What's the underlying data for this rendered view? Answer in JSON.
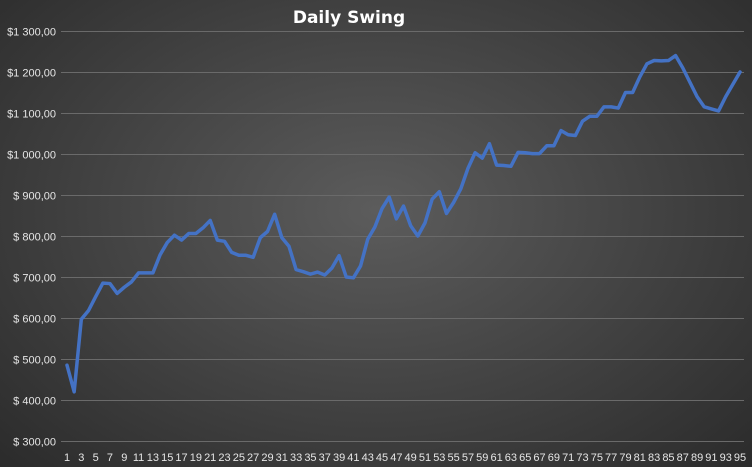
{
  "chart_data": {
    "type": "line",
    "title": "Daily Swing",
    "xlabel": "",
    "ylabel": "",
    "ylim": [
      300,
      1300
    ],
    "ytick_values": [
      300,
      400,
      500,
      600,
      700,
      800,
      900,
      1000,
      1100,
      1200,
      1300
    ],
    "ytick_labels": [
      "$ 300,00",
      "$ 400,00",
      "$ 500,00",
      "$ 600,00",
      "$ 700,00",
      "$ 800,00",
      "$ 900,00",
      "$1 000,00",
      "$1 100,00",
      "$1 200,00",
      "$1 300,00"
    ],
    "xtick_labels": [
      "1",
      "3",
      "5",
      "7",
      "9",
      "11",
      "13",
      "15",
      "17",
      "19",
      "21",
      "23",
      "25",
      "27",
      "29",
      "31",
      "33",
      "35",
      "37",
      "39",
      "41",
      "43",
      "45",
      "47",
      "49",
      "51",
      "53",
      "55",
      "57",
      "59",
      "61",
      "63",
      "65",
      "67",
      "69",
      "71",
      "73",
      "75",
      "77",
      "79",
      "81",
      "83",
      "85",
      "87",
      "89",
      "91",
      "93",
      "95"
    ],
    "grid": true,
    "legend": "none",
    "series": [
      {
        "color": "#4472c4",
        "x": [
          1,
          2,
          3,
          4,
          5,
          6,
          7,
          8,
          9,
          10,
          11,
          12,
          13,
          14,
          15,
          16,
          17,
          18,
          19,
          20,
          21,
          22,
          23,
          24,
          25,
          26,
          27,
          28,
          29,
          30,
          31,
          32,
          33,
          34,
          35,
          36,
          37,
          38,
          39,
          40,
          41,
          42,
          43,
          44,
          45,
          46,
          47,
          48,
          49,
          50,
          51,
          52,
          53,
          54,
          55,
          56,
          57,
          58,
          59,
          60,
          61,
          62,
          63,
          64,
          65,
          66,
          67,
          68,
          69,
          70,
          71,
          72,
          73,
          74,
          75,
          76,
          77,
          78,
          79,
          80,
          81,
          82,
          83,
          84,
          85,
          86,
          87,
          88,
          89,
          90,
          91,
          92,
          93,
          94,
          95
        ],
        "values": [
          485,
          420,
          597,
          618,
          652,
          685,
          684,
          660,
          675,
          688,
          710,
          710,
          710,
          754,
          784,
          802,
          790,
          806,
          806,
          820,
          838,
          790,
          787,
          760,
          753,
          753,
          748,
          796,
          811,
          853,
          796,
          775,
          718,
          713,
          707,
          712,
          705,
          722,
          752,
          700,
          698,
          727,
          792,
          822,
          867,
          895,
          842,
          873,
          825,
          800,
          832,
          890,
          908,
          855,
          882,
          915,
          965,
          1003,
          990,
          1025,
          973,
          972,
          970,
          1004,
          1003,
          1001,
          1001,
          1020,
          1020,
          1057,
          1047,
          1045,
          1080,
          1092,
          1092,
          1115,
          1115,
          1112,
          1150,
          1150,
          1188,
          1220,
          1228,
          1227,
          1228,
          1240,
          1210,
          1175,
          1140,
          1115,
          1110,
          1105,
          1140,
          1170,
          1200
        ]
      }
    ]
  }
}
